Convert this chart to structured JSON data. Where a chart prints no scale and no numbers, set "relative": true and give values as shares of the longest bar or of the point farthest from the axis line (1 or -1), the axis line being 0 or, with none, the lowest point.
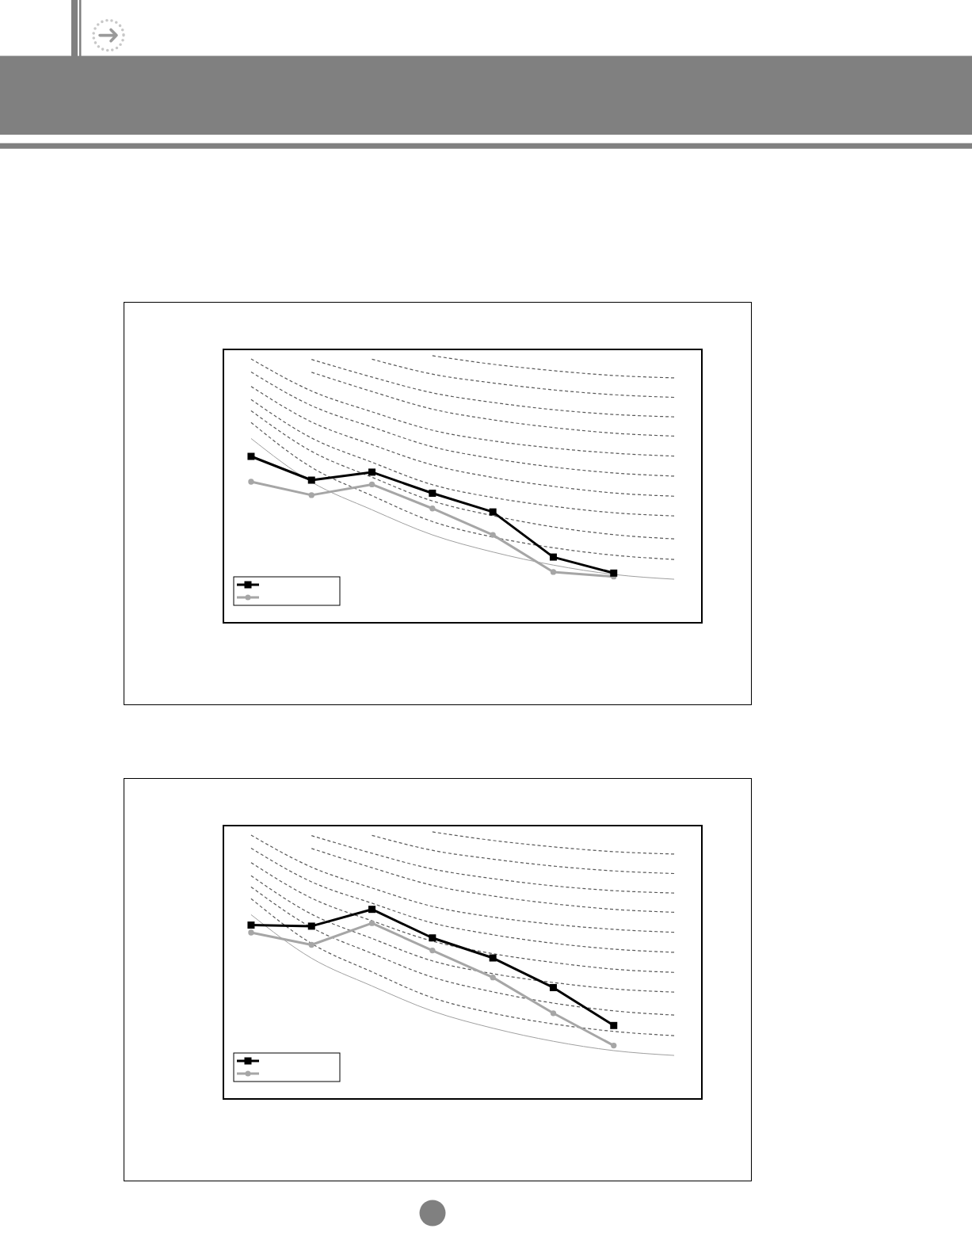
{
  "chart_data": [
    {
      "type": "line",
      "relative": true,
      "categories": [
        null,
        null,
        null,
        null,
        null,
        null,
        null,
        null
      ],
      "series": [
        {
          "color": "#000000",
          "marker": "square",
          "values": [
            0.623,
            0.534,
            0.564,
            0.485,
            0.415,
            0.246,
            0.186,
            null
          ]
        },
        {
          "color": "#a6a6a6",
          "marker": "circle",
          "values": [
            0.528,
            0.478,
            0.518,
            0.428,
            0.329,
            0.19,
            0.173,
            null
          ]
        },
        {
          "color": "#a0a0a0",
          "marker": "none",
          "values": [
            0.69,
            0.527,
            0.423,
            0.329,
            0.265,
            0.216,
            0.181,
            0.163
          ]
        },
        {
          "color": "#595959",
          "marker": "none",
          "line_style": "dashed",
          "values": [
            0.75,
            0.582,
            0.476,
            0.379,
            0.321,
            0.281,
            0.253,
            0.237
          ]
        },
        {
          "color": "#595959",
          "marker": "none",
          "line_style": "dashed",
          "values": [
            0.794,
            0.642,
            0.545,
            0.456,
            0.401,
            0.359,
            0.33,
            0.314
          ]
        },
        {
          "color": "#595959",
          "marker": "none",
          "line_style": "dashed",
          "values": [
            0.836,
            0.692,
            0.601,
            0.517,
            0.469,
            0.436,
            0.412,
            0.4
          ]
        },
        {
          "color": "#595959",
          "marker": "none",
          "line_style": "dashed",
          "values": [
            0.885,
            0.752,
            0.667,
            0.591,
            0.544,
            0.511,
            0.486,
            0.474
          ]
        },
        {
          "color": "#595959",
          "marker": "none",
          "line_style": "dashed",
          "values": [
            0.939,
            0.813,
            0.733,
            0.659,
            0.615,
            0.583,
            0.561,
            0.549
          ]
        },
        {
          "color": "#595959",
          "marker": "none",
          "line_style": "dashed",
          "values": [
            0.988,
            0.868,
            0.79,
            0.721,
            0.681,
            0.654,
            0.635,
            0.624
          ]
        },
        {
          "color": "#595959",
          "marker": "none",
          "line_style": "dashed",
          "values": [
            null,
            0.938,
            0.866,
            0.8,
            0.76,
            0.731,
            0.71,
            0.699
          ]
        },
        {
          "color": "#595959",
          "marker": "none",
          "line_style": "dashed",
          "values": [
            null,
            0.986,
            0.92,
            0.861,
            0.825,
            0.798,
            0.78,
            0.771
          ]
        },
        {
          "color": "#595959",
          "marker": "none",
          "line_style": "dashed",
          "values": [
            null,
            null,
            0.987,
            0.931,
            0.898,
            0.872,
            0.854,
            0.844
          ]
        },
        {
          "color": "#595959",
          "marker": "none",
          "line_style": "dashed",
          "values": [
            null,
            null,
            null,
            1.0,
            0.968,
            0.944,
            0.926,
            0.917
          ]
        }
      ]
    },
    {
      "type": "line",
      "relative": true,
      "categories": [
        null,
        null,
        null,
        null,
        null,
        null,
        null,
        null
      ],
      "series": [
        {
          "color": "#000000",
          "marker": "square",
          "values": [
            0.651,
            0.647,
            0.71,
            0.603,
            0.528,
            0.417,
            0.275,
            null
          ]
        },
        {
          "color": "#a6a6a6",
          "marker": "circle",
          "values": [
            0.623,
            0.577,
            0.658,
            0.556,
            0.455,
            0.321,
            0.2,
            null
          ]
        },
        {
          "color": "#a0a0a0",
          "marker": "none",
          "values": [
            0.69,
            0.527,
            0.423,
            0.329,
            0.265,
            0.216,
            0.181,
            0.163
          ]
        },
        {
          "color": "#595959",
          "marker": "none",
          "line_style": "dashed",
          "values": [
            0.75,
            0.582,
            0.476,
            0.379,
            0.321,
            0.281,
            0.253,
            0.237
          ]
        },
        {
          "color": "#595959",
          "marker": "none",
          "line_style": "dashed",
          "values": [
            0.794,
            0.642,
            0.545,
            0.456,
            0.401,
            0.359,
            0.33,
            0.314
          ]
        },
        {
          "color": "#595959",
          "marker": "none",
          "line_style": "dashed",
          "values": [
            0.836,
            0.692,
            0.601,
            0.517,
            0.469,
            0.436,
            0.412,
            0.4
          ]
        },
        {
          "color": "#595959",
          "marker": "none",
          "line_style": "dashed",
          "values": [
            0.885,
            0.752,
            0.667,
            0.591,
            0.544,
            0.511,
            0.486,
            0.474
          ]
        },
        {
          "color": "#595959",
          "marker": "none",
          "line_style": "dashed",
          "values": [
            0.939,
            0.813,
            0.733,
            0.659,
            0.615,
            0.583,
            0.561,
            0.549
          ]
        },
        {
          "color": "#595959",
          "marker": "none",
          "line_style": "dashed",
          "values": [
            0.988,
            0.868,
            0.79,
            0.721,
            0.681,
            0.654,
            0.635,
            0.624
          ]
        },
        {
          "color": "#595959",
          "marker": "none",
          "line_style": "dashed",
          "values": [
            null,
            0.938,
            0.866,
            0.8,
            0.76,
            0.731,
            0.71,
            0.699
          ]
        },
        {
          "color": "#595959",
          "marker": "none",
          "line_style": "dashed",
          "values": [
            null,
            0.986,
            0.92,
            0.861,
            0.825,
            0.798,
            0.78,
            0.771
          ]
        },
        {
          "color": "#595959",
          "marker": "none",
          "line_style": "dashed",
          "values": [
            null,
            null,
            0.987,
            0.931,
            0.898,
            0.872,
            0.854,
            0.844
          ]
        },
        {
          "color": "#595959",
          "marker": "none",
          "line_style": "dashed",
          "values": [
            null,
            null,
            null,
            1.0,
            0.968,
            0.944,
            0.926,
            0.917
          ]
        }
      ]
    }
  ]
}
